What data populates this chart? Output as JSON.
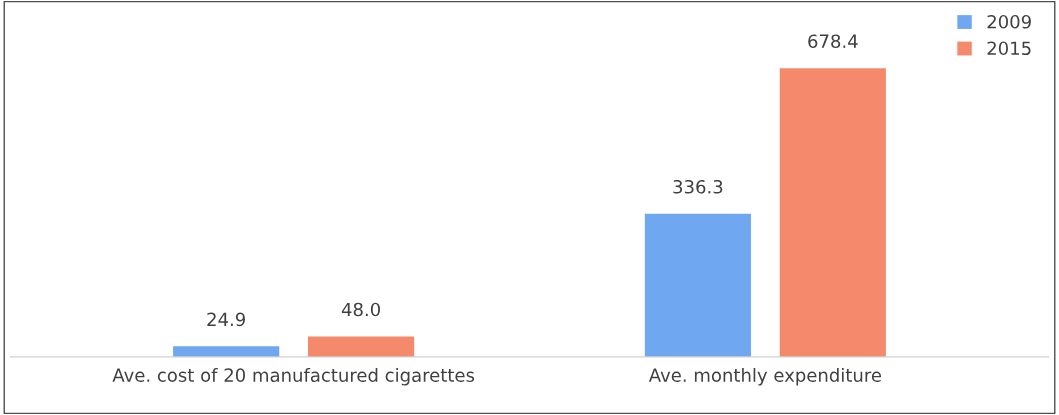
{
  "chart_data": {
    "type": "bar",
    "categories": [
      "Ave. cost of 20 manufactured cigarettes",
      "Ave. monthly expenditure"
    ],
    "series": [
      {
        "name": "2009",
        "color": "#6fa8f0",
        "values": [
          24.9,
          336.3
        ],
        "value_labels": [
          "24.9",
          "336.3"
        ]
      },
      {
        "name": "2015",
        "color": "#f4896b",
        "values": [
          48.0,
          678.4
        ],
        "value_labels": [
          "48.0",
          "678.4"
        ]
      }
    ],
    "legend": "top right",
    "tick_labels": "x"
  }
}
